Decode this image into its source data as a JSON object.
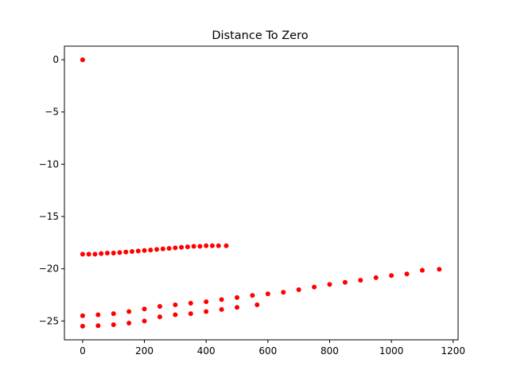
{
  "chart_data": {
    "type": "scatter",
    "title": "Distance To Zero",
    "xlabel": "",
    "ylabel": "",
    "xlim": [
      -59,
      1216
    ],
    "ylim": [
      -26.8,
      1.3
    ],
    "x_ticks": [
      0,
      200,
      400,
      600,
      800,
      1000,
      1200
    ],
    "x_tick_labels": [
      "0",
      "200",
      "400",
      "600",
      "800",
      "1000",
      "1200"
    ],
    "y_ticks": [
      0,
      -5,
      -10,
      -15,
      -20,
      -25
    ],
    "y_tick_labels": [
      "0",
      "−5",
      "−10",
      "−15",
      "−20",
      "−25"
    ],
    "grid": false,
    "marker_color": "#ff0000",
    "series": [
      {
        "points": [
          [
            0,
            0
          ],
          [
            0,
            -18.6
          ],
          [
            20,
            -18.6
          ],
          [
            40,
            -18.6
          ],
          [
            60,
            -18.55
          ],
          [
            80,
            -18.5
          ],
          [
            100,
            -18.5
          ],
          [
            120,
            -18.45
          ],
          [
            140,
            -18.4
          ],
          [
            160,
            -18.35
          ],
          [
            180,
            -18.3
          ],
          [
            200,
            -18.25
          ],
          [
            220,
            -18.2
          ],
          [
            240,
            -18.15
          ],
          [
            260,
            -18.1
          ],
          [
            280,
            -18.05
          ],
          [
            300,
            -18.0
          ],
          [
            320,
            -17.95
          ],
          [
            340,
            -17.9
          ],
          [
            360,
            -17.85
          ],
          [
            380,
            -17.85
          ],
          [
            400,
            -17.8
          ],
          [
            420,
            -17.8
          ],
          [
            440,
            -17.8
          ],
          [
            465,
            -17.8
          ],
          [
            0,
            -24.5
          ],
          [
            50,
            -24.4
          ],
          [
            100,
            -24.3
          ],
          [
            150,
            -24.1
          ],
          [
            200,
            -23.85
          ],
          [
            250,
            -23.6
          ],
          [
            300,
            -23.45
          ],
          [
            350,
            -23.3
          ],
          [
            400,
            -23.15
          ],
          [
            450,
            -22.95
          ],
          [
            500,
            -22.75
          ],
          [
            550,
            -22.55
          ],
          [
            600,
            -22.4
          ],
          [
            650,
            -22.25
          ],
          [
            700,
            -22.0
          ],
          [
            750,
            -21.75
          ],
          [
            800,
            -21.5
          ],
          [
            850,
            -21.3
          ],
          [
            900,
            -21.1
          ],
          [
            950,
            -20.85
          ],
          [
            1000,
            -20.65
          ],
          [
            1050,
            -20.5
          ],
          [
            1100,
            -20.15
          ],
          [
            1155,
            -20.05
          ],
          [
            0,
            -25.5
          ],
          [
            50,
            -25.45
          ],
          [
            100,
            -25.35
          ],
          [
            150,
            -25.2
          ],
          [
            200,
            -25.0
          ],
          [
            250,
            -24.6
          ],
          [
            300,
            -24.4
          ],
          [
            350,
            -24.3
          ],
          [
            400,
            -24.1
          ],
          [
            450,
            -23.9
          ],
          [
            500,
            -23.7
          ],
          [
            565,
            -23.45
          ]
        ]
      }
    ]
  }
}
